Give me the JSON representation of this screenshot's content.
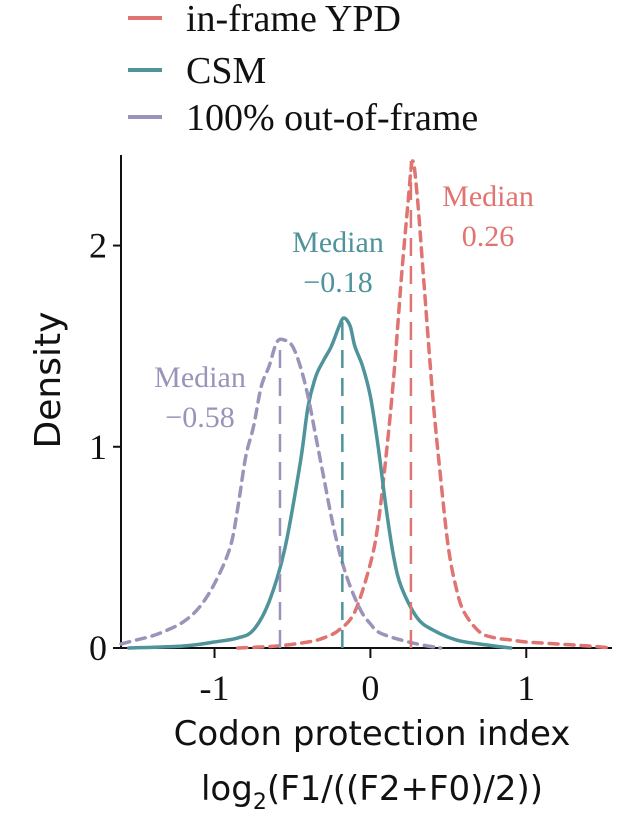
{
  "chart_data": {
    "type": "line",
    "xlabel": "Codon protection index",
    "xlabel_formula": {
      "prefix": "log",
      "subscript": "2",
      "suffix": "(F1/((F2+F0)/2))"
    },
    "ylabel": "Density",
    "xlim": [
      -1.6,
      1.55
    ],
    "ylim": [
      0,
      2.45
    ],
    "x_ticks": [
      -1,
      0,
      1
    ],
    "x_tick_labels": [
      "-1",
      "0",
      "1"
    ],
    "y_ticks": [
      0,
      1,
      2
    ],
    "y_tick_labels": [
      "0",
      "1",
      "2"
    ],
    "grid": false,
    "legend_position": "top-left",
    "colors": {
      "in_frame": "#e07470",
      "csm": "#4f939b",
      "out_of_frame": "#9b93b9"
    },
    "series": [
      {
        "name": "in-frame YPD",
        "style": "dashed",
        "x": [
          -0.85,
          -0.6,
          -0.4,
          -0.3,
          -0.2,
          -0.1,
          0.0,
          0.05,
          0.1,
          0.15,
          0.2,
          0.24,
          0.27,
          0.3,
          0.34,
          0.4,
          0.45,
          0.5,
          0.55,
          0.6,
          0.7,
          0.8,
          0.9,
          1.0,
          1.2,
          1.4,
          1.55
        ],
        "y": [
          0.0,
          0.01,
          0.03,
          0.05,
          0.09,
          0.18,
          0.42,
          0.62,
          0.95,
          1.35,
          1.85,
          2.2,
          2.42,
          2.25,
          1.85,
          1.25,
          0.85,
          0.5,
          0.3,
          0.18,
          0.08,
          0.05,
          0.04,
          0.03,
          0.02,
          0.01,
          0.0
        ]
      },
      {
        "name": "CSM",
        "style": "solid",
        "x": [
          -1.55,
          -1.2,
          -1.0,
          -0.85,
          -0.75,
          -0.65,
          -0.55,
          -0.45,
          -0.4,
          -0.35,
          -0.3,
          -0.25,
          -0.2,
          -0.17,
          -0.13,
          -0.1,
          -0.05,
          0.0,
          0.05,
          0.1,
          0.15,
          0.2,
          0.3,
          0.4,
          0.55,
          0.7,
          0.9
        ],
        "y": [
          0.0,
          0.01,
          0.03,
          0.05,
          0.09,
          0.23,
          0.49,
          0.92,
          1.2,
          1.35,
          1.43,
          1.5,
          1.6,
          1.64,
          1.6,
          1.5,
          1.4,
          1.25,
          1.0,
          0.7,
          0.45,
          0.3,
          0.15,
          0.09,
          0.04,
          0.02,
          0.0
        ]
      },
      {
        "name": "100% out-of-frame",
        "style": "dashed",
        "x": [
          -1.6,
          -1.5,
          -1.4,
          -1.3,
          -1.2,
          -1.1,
          -1.0,
          -0.9,
          -0.85,
          -0.8,
          -0.75,
          -0.7,
          -0.65,
          -0.6,
          -0.55,
          -0.5,
          -0.45,
          -0.4,
          -0.35,
          -0.3,
          -0.25,
          -0.2,
          -0.15,
          -0.1,
          -0.05,
          0.0,
          0.05,
          0.15,
          0.3,
          0.45
        ],
        "y": [
          0.02,
          0.04,
          0.06,
          0.09,
          0.13,
          0.2,
          0.32,
          0.5,
          0.7,
          0.95,
          1.1,
          1.3,
          1.4,
          1.52,
          1.53,
          1.5,
          1.4,
          1.25,
          1.05,
          0.85,
          0.65,
          0.48,
          0.35,
          0.25,
          0.17,
          0.12,
          0.08,
          0.05,
          0.02,
          0.0
        ]
      }
    ],
    "medians": [
      {
        "series": "in-frame YPD",
        "x": 0.26,
        "peak": 2.42,
        "label": "Median",
        "value": "0.26"
      },
      {
        "series": "CSM",
        "x": -0.18,
        "peak": 1.62,
        "label": "Median",
        "value": "−0.18"
      },
      {
        "series": "100% out-of-frame",
        "x": -0.58,
        "peak": 1.52,
        "label": "Median",
        "value": "−0.58"
      }
    ]
  }
}
